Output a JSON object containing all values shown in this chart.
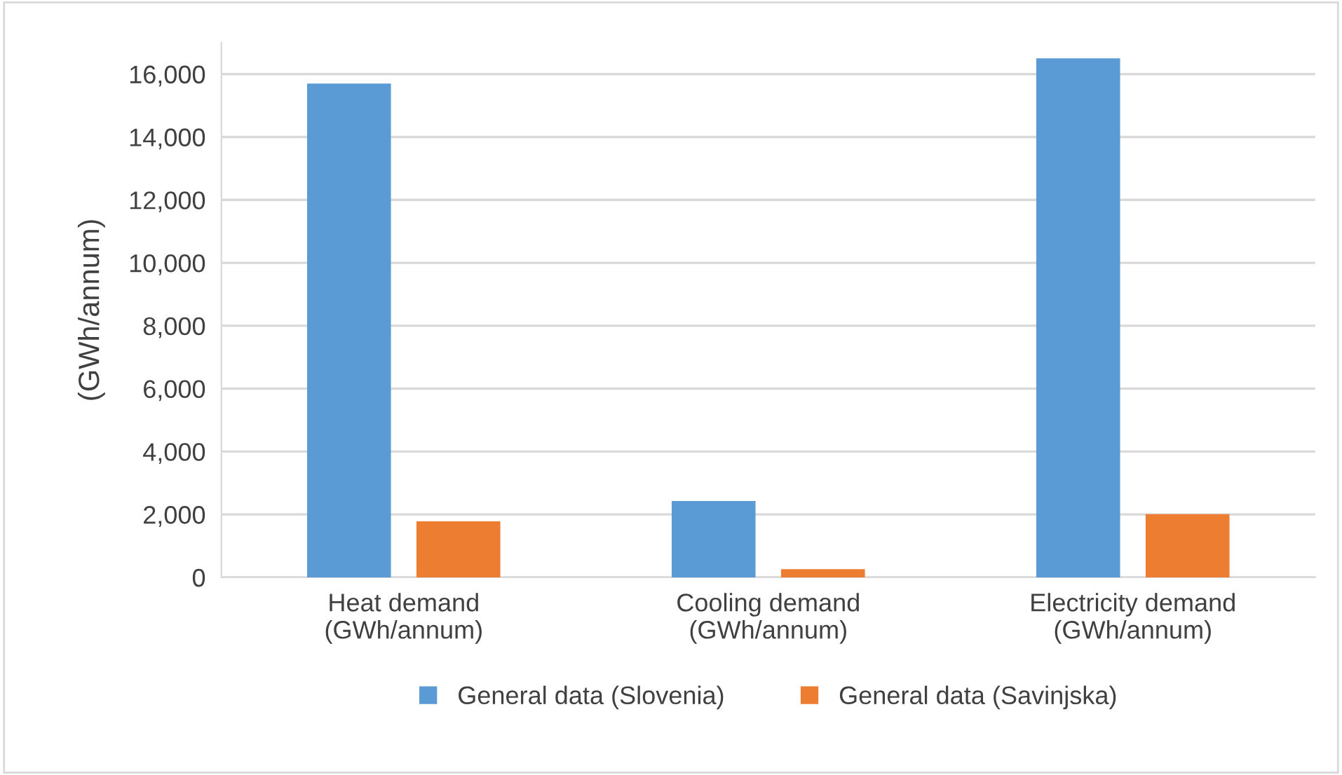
{
  "chart_data": {
    "type": "bar",
    "ylabel": "(GWh/annum)",
    "categories": [
      "Heat demand\n(GWh/annum)",
      "Cooling demand\n(GWh/annum)",
      "Electricity demand\n(GWh/annum)"
    ],
    "series": [
      {
        "name": "General data (Slovenia)",
        "color": "#5b9bd5",
        "values": [
          15700,
          2430,
          16500
        ]
      },
      {
        "name": "General data (Savinjska)",
        "color": "#ed7d31",
        "values": [
          1780,
          260,
          2010
        ]
      }
    ],
    "ylim": [
      0,
      17000
    ],
    "yticks": [
      {
        "value": 0,
        "label": "0"
      },
      {
        "value": 2000,
        "label": "2,000"
      },
      {
        "value": 4000,
        "label": "4,000"
      },
      {
        "value": 6000,
        "label": "6,000"
      },
      {
        "value": 8000,
        "label": "8,000"
      },
      {
        "value": 10000,
        "label": "10,000"
      },
      {
        "value": 12000,
        "label": "12,000"
      },
      {
        "value": 14000,
        "label": "14,000"
      },
      {
        "value": 16000,
        "label": "16,000"
      }
    ],
    "grid": "y",
    "legend": "bottom"
  }
}
